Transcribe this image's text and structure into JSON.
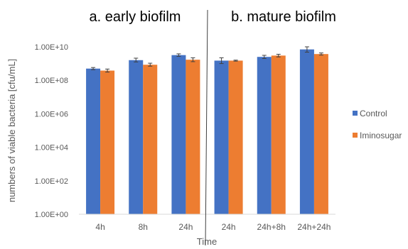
{
  "chart_data": {
    "type": "bar",
    "panel_titles": [
      "a. early biofilm",
      "b. mature biofilm"
    ],
    "xlabel": "Time",
    "ylabel": "numbers of viable bacteria [cfu/mL]",
    "yscale": "log",
    "ylim": [
      1,
      10000000000
    ],
    "yticks": [
      "1.00E+00",
      "1.00E+02",
      "1.00E+04",
      "1.00E+06",
      "1.00E+08",
      "1.00E+10"
    ],
    "categories": [
      "4h",
      "8h",
      "24h",
      "24h",
      "24h+8h",
      "24h+24h"
    ],
    "series": [
      {
        "name": "Control",
        "color": "#4472C4",
        "values": [
          500000000,
          1600000000,
          3200000000,
          1500000000,
          2500000000,
          7000000000
        ],
        "error_low": [
          430000000,
          1250000000,
          2700000000,
          1000000000,
          2000000000,
          4800000000
        ],
        "error_high": [
          580000000,
          2100000000,
          3800000000,
          2200000000,
          3100000000,
          10000000000
        ]
      },
      {
        "name": "Iminosugar",
        "color": "#ED7D31",
        "values": [
          380000000,
          850000000,
          1700000000,
          1500000000,
          3000000000,
          3700000000
        ],
        "error_low": [
          310000000,
          700000000,
          1300000000,
          1400000000,
          2500000000,
          3200000000
        ],
        "error_high": [
          470000000,
          1050000000,
          2200000000,
          1600000000,
          3600000000,
          4300000000
        ]
      }
    ],
    "legend_position": "right",
    "grid": false
  }
}
